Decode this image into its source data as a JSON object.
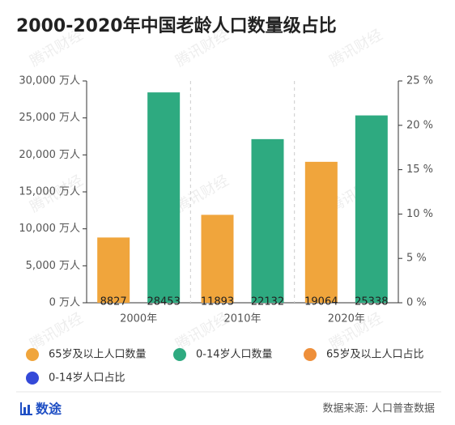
{
  "chart_data": {
    "type": "bar",
    "title": "2000-2020年中国老龄人口数量级占比",
    "watermark": "腾讯财经",
    "categories": [
      "2000年",
      "2010年",
      "2020年"
    ],
    "series": [
      {
        "name": "65岁及以上人口数量",
        "color": "#f0a53c",
        "values": [
          8827,
          11893,
          19064
        ]
      },
      {
        "name": "0-14岁人口数量",
        "color": "#2eaa80",
        "values": [
          28453,
          22132,
          25338
        ]
      },
      {
        "name": "65岁及以上人口占比",
        "color": "#ee8f3a",
        "type": "line",
        "axis": "y2",
        "values": [
          null,
          null,
          null
        ]
      },
      {
        "name": "0-14岁人口占比",
        "color": "#3449d8",
        "type": "line",
        "axis": "y2",
        "values": [
          null,
          null,
          null
        ]
      }
    ],
    "ylim": [
      0,
      30000
    ],
    "yticks": [
      {
        "value": 0,
        "label": "0 万人"
      },
      {
        "value": 5000,
        "label": "5,000 万人"
      },
      {
        "value": 10000,
        "label": "10,000 万人"
      },
      {
        "value": 15000,
        "label": "15,000 万人"
      },
      {
        "value": 20000,
        "label": "20,000 万人"
      },
      {
        "value": 25000,
        "label": "25,000 万人"
      },
      {
        "value": 30000,
        "label": "30,000 万人"
      }
    ],
    "y2lim": [
      0,
      25
    ],
    "y2ticks": [
      {
        "value": 0,
        "label": "0 %"
      },
      {
        "value": 5,
        "label": "5 %"
      },
      {
        "value": 10,
        "label": "10 %"
      },
      {
        "value": 15,
        "label": "15 %"
      },
      {
        "value": 20,
        "label": "20 %"
      },
      {
        "value": 25,
        "label": "25 %"
      }
    ],
    "brand": "数途",
    "source": "数据来源: 人口普查数据"
  }
}
